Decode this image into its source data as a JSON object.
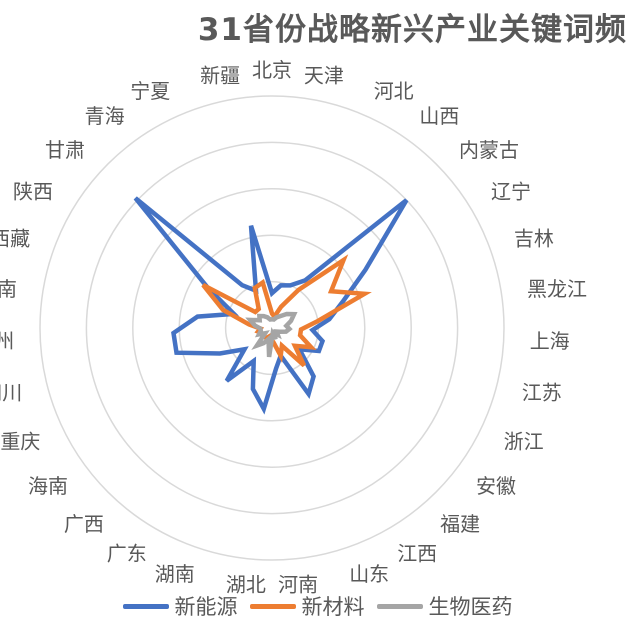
{
  "chart_data": {
    "type": "radar",
    "title": "31省份战略新兴产业关键词频",
    "categories": [
      "北京",
      "天津",
      "河北",
      "山西",
      "内蒙古",
      "辽宁",
      "吉林",
      "黑龙江",
      "上海",
      "江苏",
      "浙江",
      "安徽",
      "福建",
      "江西",
      "山东",
      "河南",
      "湖北",
      "湖南",
      "广东",
      "广西",
      "海南",
      "重庆",
      "四川",
      "贵州",
      "云南",
      "西藏",
      "陕西",
      "甘肃",
      "青海",
      "宁夏",
      "新疆"
    ],
    "rlim": [
      0,
      8
    ],
    "grid": true,
    "legend_position": "bottom",
    "series": [
      {
        "name": "新能源",
        "color": "#4472C4",
        "values": [
          1.2,
          1.5,
          1.6,
          2.0,
          6.4,
          3.8,
          2.6,
          2.0,
          1.4,
          1.8,
          1.8,
          1.2,
          2.2,
          2.6,
          1.0,
          1.4,
          2.8,
          2.2,
          1.3,
          2.4,
          1.2,
          2.0,
          3.4,
          3.4,
          2.6,
          1.4,
          2.6,
          6.5,
          1.8,
          1.4,
          3.6
        ]
      },
      {
        "name": "新材料",
        "color": "#ED7D31",
        "values": [
          0.5,
          0.4,
          0.8,
          1.6,
          3.4,
          2.4,
          3.4,
          1.6,
          1.0,
          1.0,
          1.5,
          1.0,
          1.7,
          0.7,
          1.0,
          0.5,
          0.5,
          0.3,
          0.4,
          0.4,
          0.4,
          0.4,
          0.5,
          0.4,
          0.8,
          1.8,
          2.8,
          0.8,
          0.8,
          1.5,
          1.6
        ]
      },
      {
        "name": "生物医药",
        "color": "#A5A5A5",
        "values": [
          0.3,
          0.3,
          0.4,
          0.5,
          0.7,
          0.9,
          0.7,
          0.5,
          0.6,
          0.5,
          0.3,
          0.2,
          0.3,
          0.2,
          0.4,
          0.2,
          1.0,
          0.4,
          0.6,
          0.8,
          0.3,
          0.5,
          0.4,
          0.4,
          0.6,
          0.8,
          0.5,
          0.6,
          0.5,
          0.4,
          0.3
        ]
      }
    ]
  }
}
